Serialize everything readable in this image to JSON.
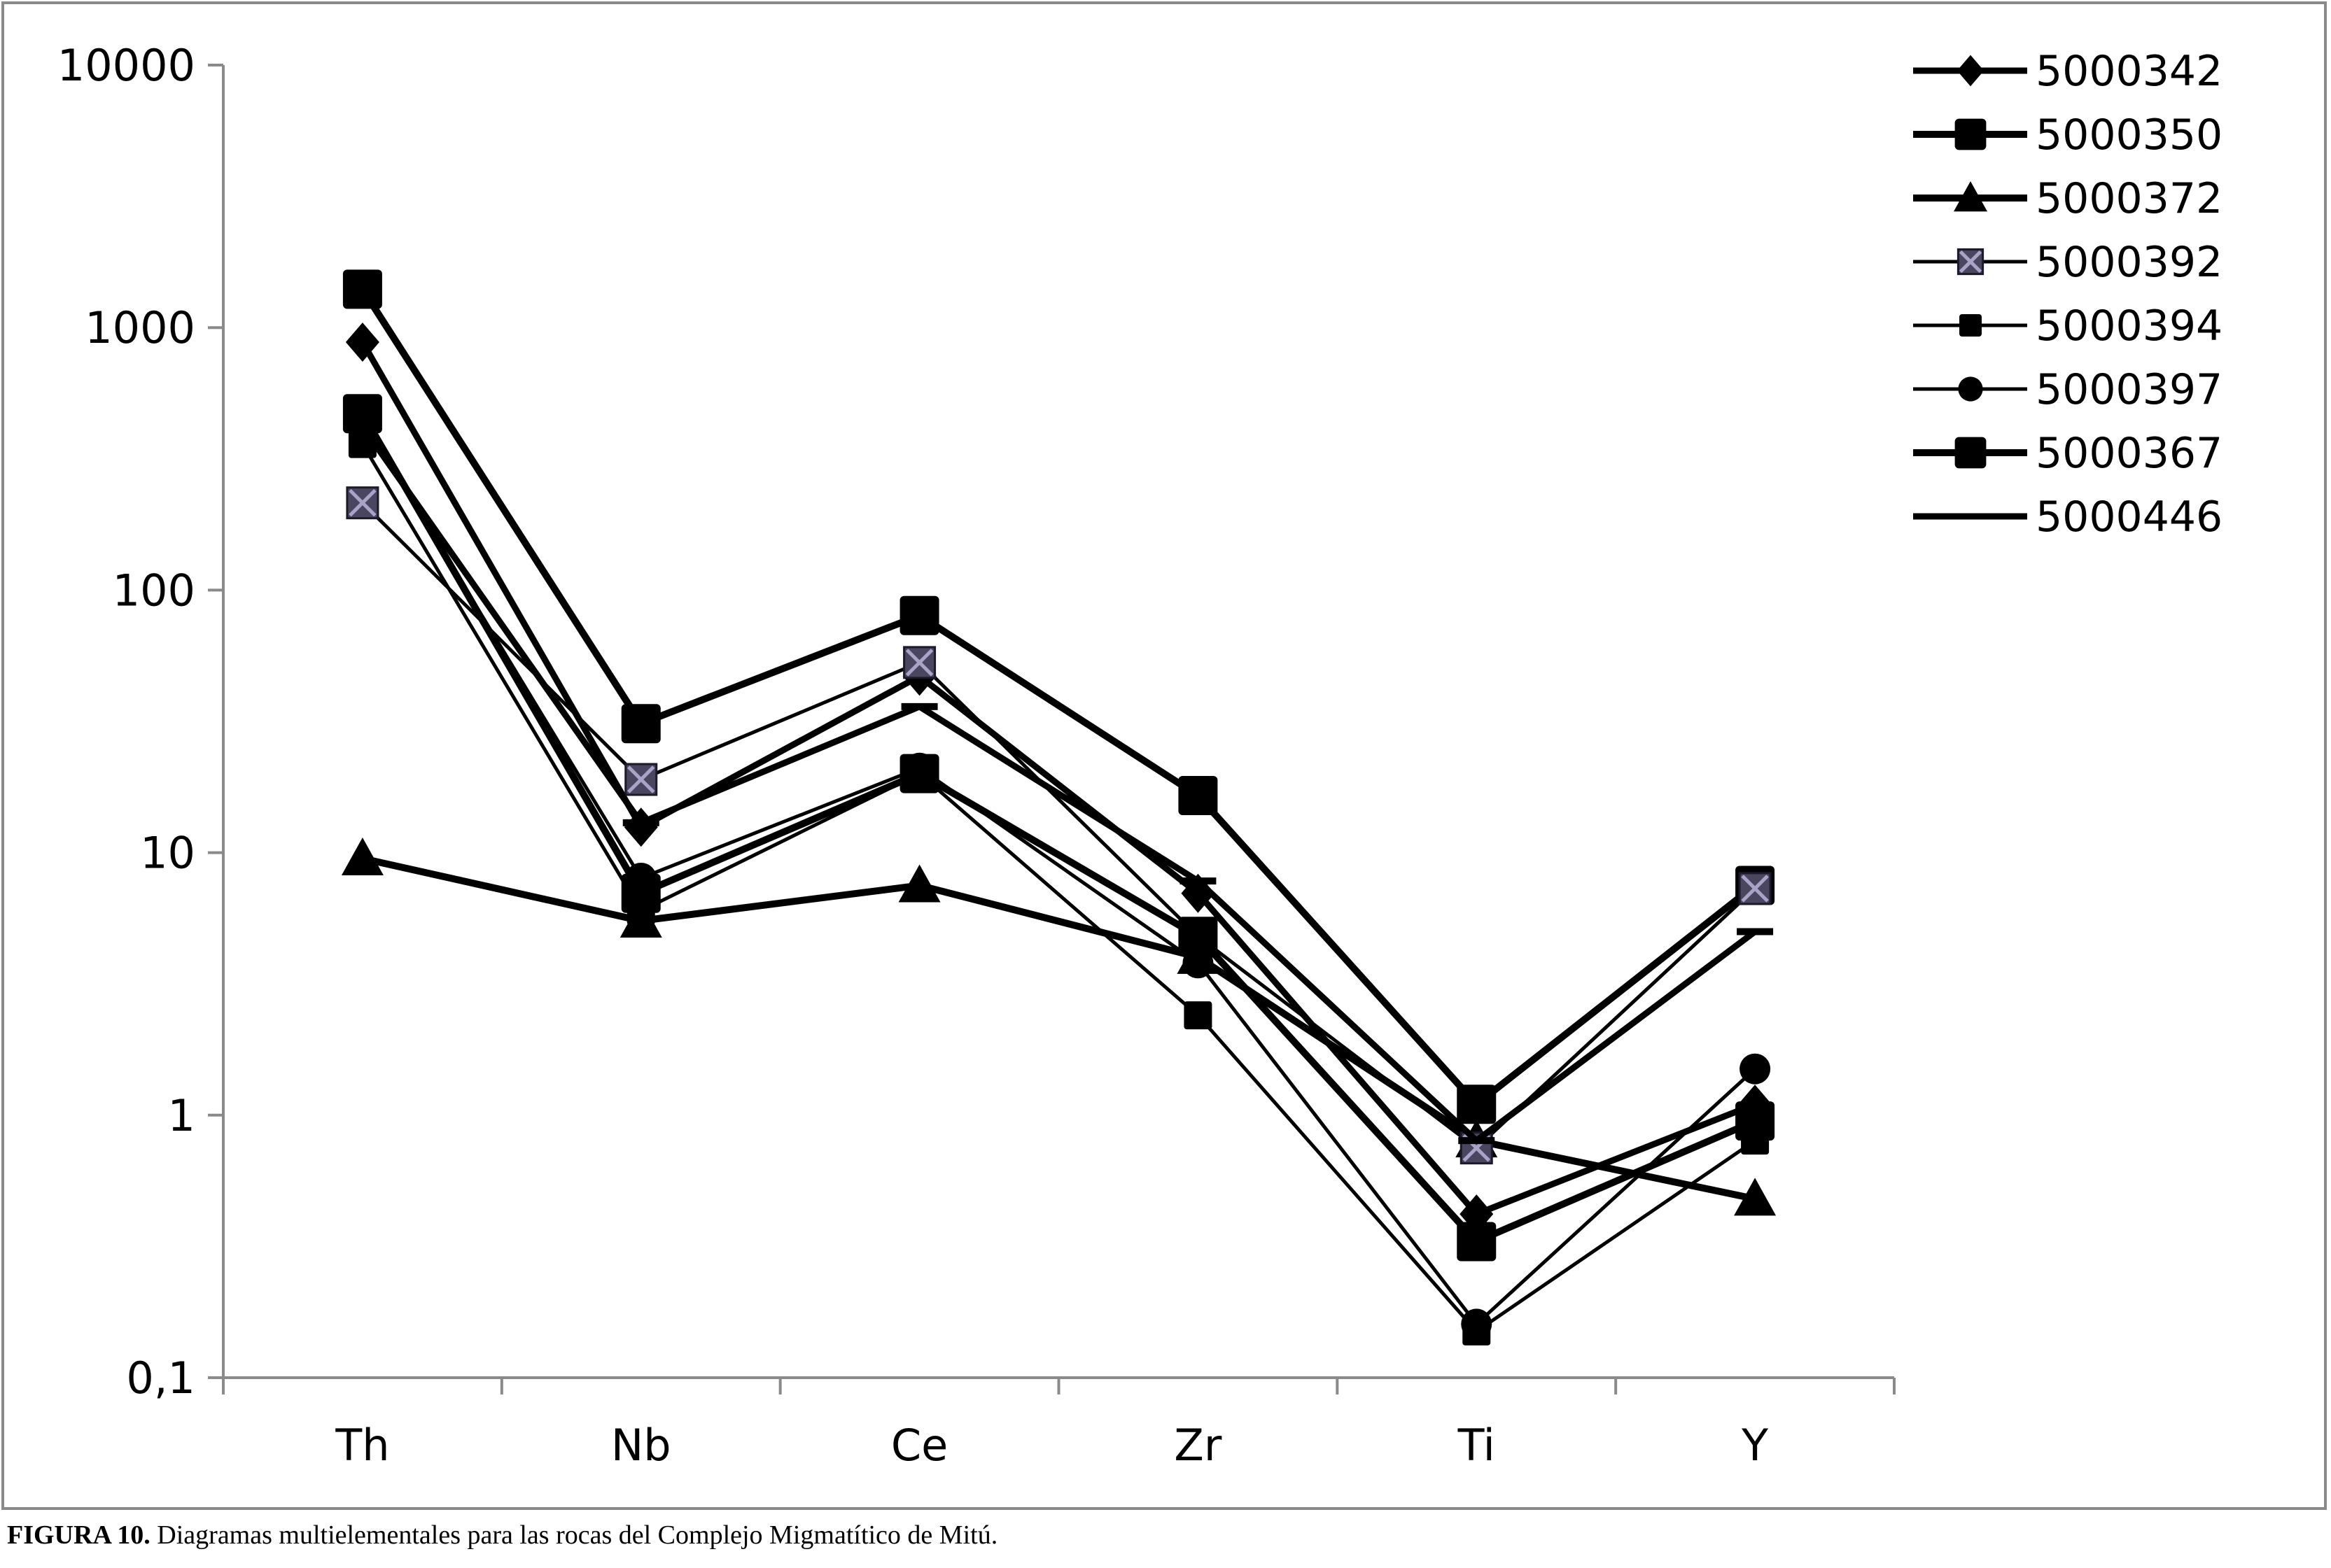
{
  "caption": {
    "label": "FIGURA 10.",
    "text": "Diagramas multielementales para las rocas del Complejo Migmatítico de Mitú."
  },
  "chart_data": {
    "type": "line",
    "title": "",
    "xlabel": "",
    "ylabel": "",
    "yscale": "log",
    "ylim": [
      0.1,
      10000
    ],
    "y_ticks": [
      {
        "value": 0.1,
        "label": "0,1"
      },
      {
        "value": 1,
        "label": "1"
      },
      {
        "value": 10,
        "label": "10"
      },
      {
        "value": 100,
        "label": "100"
      },
      {
        "value": 1000,
        "label": "1000"
      },
      {
        "value": 10000,
        "label": "10000"
      }
    ],
    "categories": [
      "Th",
      "Nb",
      "Ce",
      "Zr",
      "Ti",
      "Y"
    ],
    "grid": false,
    "legend": "top-right",
    "line_color": "#000000",
    "series": [
      {
        "name": "5000342",
        "marker": "diamond",
        "values": [
          880,
          12.5,
          47,
          7.0,
          0.42,
          1.1
        ]
      },
      {
        "name": "5000350",
        "marker": "square",
        "values": [
          1400,
          31,
          80,
          16.5,
          1.1,
          7.5
        ]
      },
      {
        "name": "5000372",
        "marker": "triangle",
        "values": [
          9.5,
          5.5,
          7.5,
          4.0,
          0.8,
          0.48
        ]
      },
      {
        "name": "5000392",
        "marker": "x-square",
        "values": [
          215,
          19,
          53,
          4.8,
          0.75,
          7.3
        ]
      },
      {
        "name": "5000394",
        "marker": "small-square",
        "values": [
          360,
          6.0,
          20,
          2.4,
          0.15,
          0.8
        ]
      },
      {
        "name": "5000397",
        "marker": "circle",
        "values": [
          450,
          8.0,
          21,
          3.8,
          0.16,
          1.5
        ]
      },
      {
        "name": "5000367",
        "marker": "square",
        "values": [
          470,
          7.0,
          20,
          4.8,
          0.33,
          0.95
        ]
      },
      {
        "name": "5000446",
        "marker": "none",
        "values": [
          420,
          13,
          36,
          7.8,
          0.8,
          5.0
        ]
      }
    ]
  }
}
